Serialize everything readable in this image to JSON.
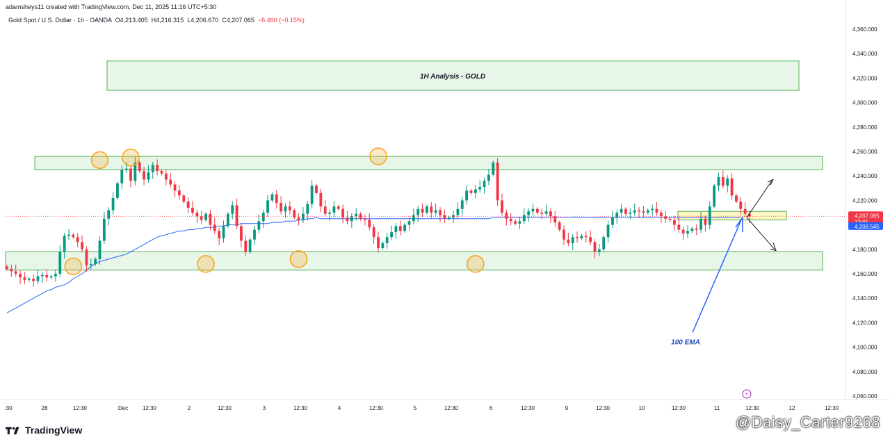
{
  "header": {
    "created_by": "adamsheys11 created with TradingView.com, Dec 11, 2025 11:16 UTC+5:30"
  },
  "symbol": {
    "name": "Gold Spot / U.S. Dollar · 1h · OANDA",
    "o_label": "O",
    "o": "4,213.405",
    "h_label": "H",
    "h": "4,216.315",
    "l_label": "L",
    "l": "4,206.670",
    "c_label": "C",
    "c": "4,207.065",
    "change": "−6.460 (−0.15%)"
  },
  "colors": {
    "up": "#089981",
    "down": "#f23645",
    "ema": "#2962ff",
    "zone_fill": "#e8f5e9",
    "zone_border": "#4caf50",
    "circle": "#f7a21b"
  },
  "price_labels": {
    "last": "4,207.065",
    "countdown": "13:05",
    "ema": "4,206.545"
  },
  "annotations": {
    "title_box": "1H Analysis - GOLD",
    "ema_label": "100 EMA"
  },
  "footer": {
    "brand": "TradingView",
    "watermark": "@Daisy_Carter9268"
  },
  "chart_data": {
    "type": "candlestick",
    "ylim": [
      4050,
      4370
    ],
    "y_ticks": [
      4060,
      4080,
      4100,
      4120,
      4140,
      4160,
      4180,
      4200,
      4220,
      4240,
      4260,
      4280,
      4300,
      4320,
      4340,
      4360
    ],
    "y_tick_labels": [
      "4,060.000",
      "4,080.000",
      "4,100.000",
      "4,120.000",
      "4,140.000",
      "4,160.000",
      "4,180.000",
      "4,200.000",
      "4,220.000",
      "4,240.000",
      "4,260.000",
      "4,280.000",
      "4,300.000",
      "4,320.000",
      "4,340.000",
      "4,360.000"
    ],
    "x_tick_labels": [
      ":30",
      "28",
      "12:30",
      "Dec",
      "12:30",
      "2",
      "12:30",
      "3",
      "12:30",
      "4",
      "12:30",
      "5",
      "12:30",
      "6",
      "12:30",
      "9",
      "12:30",
      "10",
      "12:30",
      "11",
      "12:30",
      "12",
      "12:30"
    ],
    "closes": [
      4164,
      4162,
      4160,
      4157,
      4155,
      4156,
      4154,
      4158,
      4159,
      4157,
      4158,
      4160,
      4178,
      4191,
      4192,
      4190,
      4186,
      4180,
      4167,
      4168,
      4172,
      4187,
      4205,
      4212,
      4222,
      4234,
      4245,
      4246,
      4236,
      4251,
      4244,
      4237,
      4243,
      4249,
      4244,
      4242,
      4237,
      4233,
      4228,
      4224,
      4219,
      4214,
      4210,
      4207,
      4204,
      4209,
      4200,
      4195,
      4189,
      4199,
      4209,
      4216,
      4199,
      4187,
      4178,
      4188,
      4196,
      4203,
      4210,
      4220,
      4225,
      4218,
      4211,
      4215,
      4212,
      4206,
      4204,
      4209,
      4217,
      4232,
      4226,
      4215,
      4209,
      4210,
      4215,
      4213,
      4206,
      4203,
      4207,
      4209,
      4205,
      4204,
      4198,
      4190,
      4181,
      4185,
      4190,
      4194,
      4199,
      4195,
      4200,
      4203,
      4208,
      4213,
      4210,
      4215,
      4210,
      4212,
      4208,
      4205,
      4206,
      4208,
      4213,
      4220,
      4228,
      4226,
      4229,
      4231,
      4236,
      4241,
      4251,
      4220,
      4210,
      4205,
      4203,
      4201,
      4203,
      4208,
      4211,
      4213,
      4210,
      4209,
      4211,
      4207,
      4202,
      4196,
      4188,
      4185,
      4190,
      4189,
      4191,
      4190,
      4186,
      4178,
      4180,
      4190,
      4200,
      4206,
      4210,
      4213,
      4209,
      4210,
      4212,
      4211,
      4210,
      4212,
      4213,
      4210,
      4207,
      4205,
      4204,
      4200,
      4196,
      4193,
      4195,
      4197,
      4196,
      4205,
      4200,
      4215,
      4232,
      4239,
      4232,
      4238,
      4224,
      4219,
      4213,
      4209,
      4207
    ],
    "ema": [
      4128,
      4130,
      4132,
      4134,
      4136,
      4138,
      4140,
      4142,
      4144,
      4146,
      4147,
      4149,
      4150,
      4151,
      4153,
      4156,
      4158,
      4160,
      4163,
      4166,
      4168,
      4170,
      4171,
      4172,
      4173,
      4174,
      4175,
      4176,
      4178,
      4180,
      4182,
      4184,
      4186,
      4188,
      4190,
      4191,
      4192,
      4193,
      4194,
      4195,
      4195,
      4196,
      4196,
      4197,
      4197,
      4198,
      4198,
      4198,
      4199,
      4199,
      4200,
      4200,
      4200,
      4201,
      4201,
      4201,
      4201,
      4201,
      4201,
      4201,
      4202,
      4202,
      4202,
      4203,
      4203,
      4203,
      4204,
      4204,
      4205,
      4205,
      4206,
      4205,
      4205,
      4205,
      4205,
      4205,
      4205,
      4205,
      4205,
      4205,
      4205,
      4205,
      4205,
      4205,
      4205,
      4205,
      4205,
      4205,
      4205,
      4205,
      4205,
      4205,
      4205,
      4205,
      4205,
      4205,
      4205,
      4205,
      4205,
      4205,
      4205,
      4205,
      4205,
      4205,
      4205,
      4205,
      4205,
      4205,
      4205,
      4205,
      4206,
      4206,
      4206,
      4206,
      4206,
      4206,
      4206,
      4206,
      4206,
      4206,
      4206,
      4206,
      4206,
      4206,
      4206,
      4206,
      4206,
      4206,
      4206,
      4206,
      4206,
      4206,
      4206,
      4206,
      4206,
      4206,
      4206,
      4206,
      4206,
      4206,
      4206,
      4206,
      4206,
      4206,
      4206,
      4206,
      4206,
      4206,
      4206,
      4206,
      4206,
      4206,
      4206,
      4206,
      4206,
      4206,
      4206,
      4206,
      4206,
      4206,
      4206,
      4206,
      4206,
      4206,
      4206,
      4206,
      4206
    ],
    "resistance_zone": [
      4245,
      4256
    ],
    "support_zone": [
      4163,
      4178
    ],
    "title_zone": [
      4310,
      4334
    ],
    "pivot_zone": [
      4204,
      4211
    ],
    "swing_points": [
      {
        "x": 21,
        "y": 4253,
        "kind": "high"
      },
      {
        "x": 28,
        "y": 4255,
        "kind": "high"
      },
      {
        "x": 15,
        "y": 4166,
        "kind": "low"
      },
      {
        "x": 45,
        "y": 4168,
        "kind": "low"
      },
      {
        "x": 66,
        "y": 4172,
        "kind": "low"
      },
      {
        "x": 84,
        "y": 4256,
        "kind": "high"
      },
      {
        "x": 106,
        "y": 4168,
        "kind": "low"
      }
    ]
  }
}
